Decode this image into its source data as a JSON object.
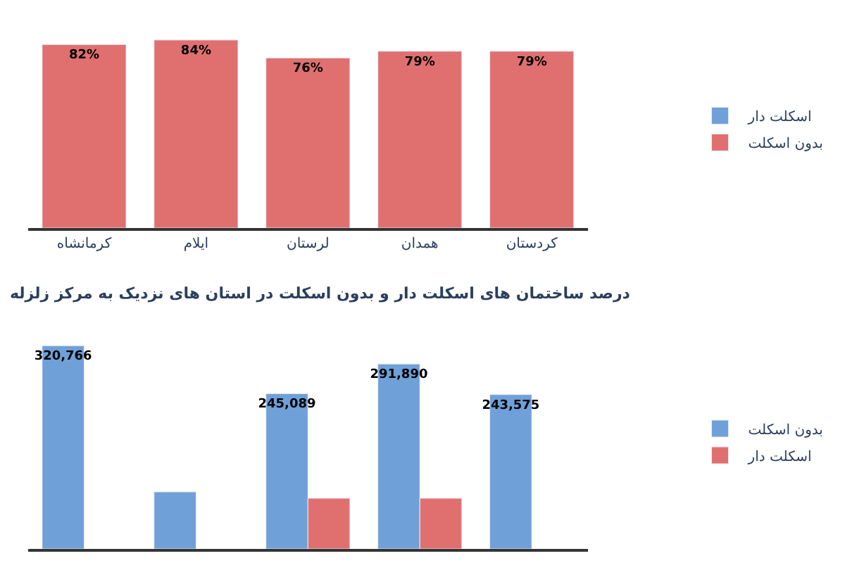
{
  "chart_data": [
    {
      "type": "bar",
      "stacked": true,
      "title": "درصد ساختمان های اسکلت دار و بدون اسکلت در استان های نزدیک به مرکز زلزله",
      "categories": [
        "کرمانشاه",
        "ایلام",
        "لرستان",
        "همدان",
        "کردستان"
      ],
      "tick_labels": "x",
      "legend": "right",
      "series": [
        {
          "name": "بدون اسکلت",
          "color": "#e07070",
          "values": [
            82,
            84,
            76,
            79,
            79
          ],
          "value_labels": [
            "82%",
            "84%",
            "76%",
            "79%",
            "79%"
          ]
        },
        {
          "name": "اسکلت دار",
          "color": "#6fa0d8",
          "values": [
            null,
            null,
            null,
            null,
            null
          ]
        }
      ]
    },
    {
      "type": "bar",
      "categories": [
        null,
        null,
        null,
        null,
        null
      ],
      "tick_labels": false,
      "legend": "right",
      "series": [
        {
          "name": "بدون اسکلت",
          "color": "#6fa0d8",
          "values": [
            320766,
            90000,
            245089,
            291890,
            243575
          ],
          "value_labels": [
            "320,766",
            null,
            "245,089",
            "291,890",
            "243,575"
          ]
        },
        {
          "name": "اسکلت دار",
          "color": "#e07070",
          "values": [
            null,
            null,
            80000,
            80000,
            null
          ]
        }
      ]
    }
  ]
}
